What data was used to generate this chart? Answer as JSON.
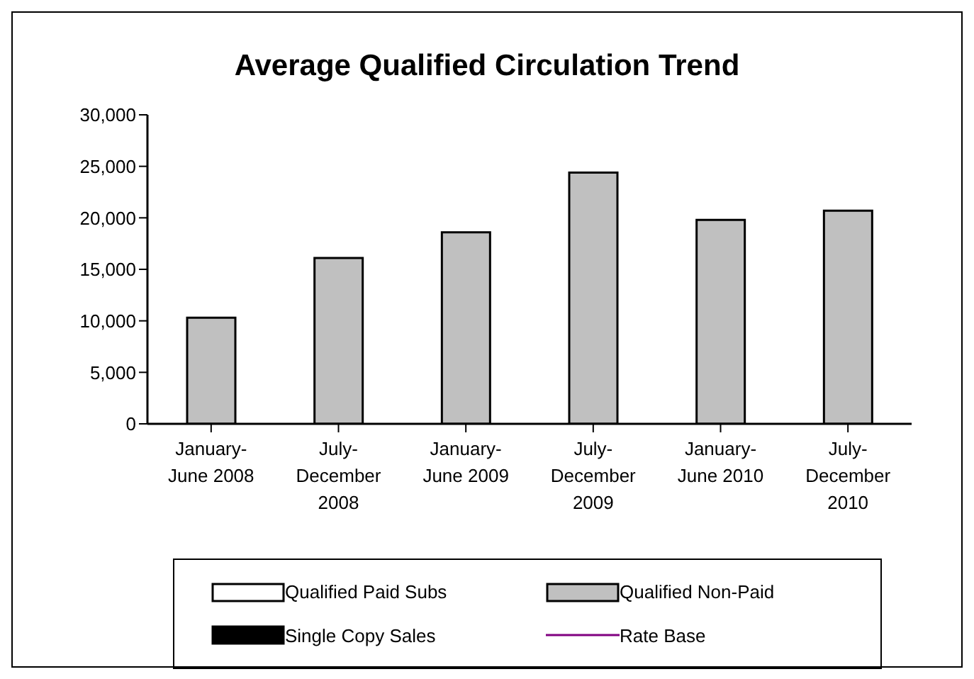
{
  "chart_data": {
    "type": "bar",
    "title": "Average Qualified Circulation Trend",
    "categories": [
      "January-June 2008",
      "July-December 2008",
      "January-June 2009",
      "July-December 2009",
      "January-June 2010",
      "July-December 2010"
    ],
    "stacked": true,
    "ylim": [
      0,
      30000
    ],
    "yticks": [
      {
        "value": 0,
        "label": "0"
      },
      {
        "value": 5000,
        "label": "5,000"
      },
      {
        "value": 10000,
        "label": "10,000"
      },
      {
        "value": 15000,
        "label": "15,000"
      },
      {
        "value": 20000,
        "label": "20,000"
      },
      {
        "value": 25000,
        "label": "25,000"
      },
      {
        "value": 30000,
        "label": "30,000"
      }
    ],
    "grid": false,
    "legend": "bottom",
    "series": [
      {
        "name": "Qualified Paid Subs",
        "color": "#ffffff",
        "values": [
          0,
          0,
          0,
          0,
          0,
          0
        ]
      },
      {
        "name": "Qualified Non-Paid",
        "color": "#c0c0c0",
        "values": [
          10300,
          16100,
          18600,
          24400,
          19800,
          20700
        ]
      },
      {
        "name": "Single Copy Sales",
        "color": "#000000",
        "values": [
          0,
          0,
          0,
          0,
          0,
          0
        ]
      },
      {
        "name": "Rate Base",
        "type": "line",
        "color": "#800080",
        "values": [
          null,
          null,
          null,
          null,
          null,
          null
        ]
      }
    ]
  }
}
